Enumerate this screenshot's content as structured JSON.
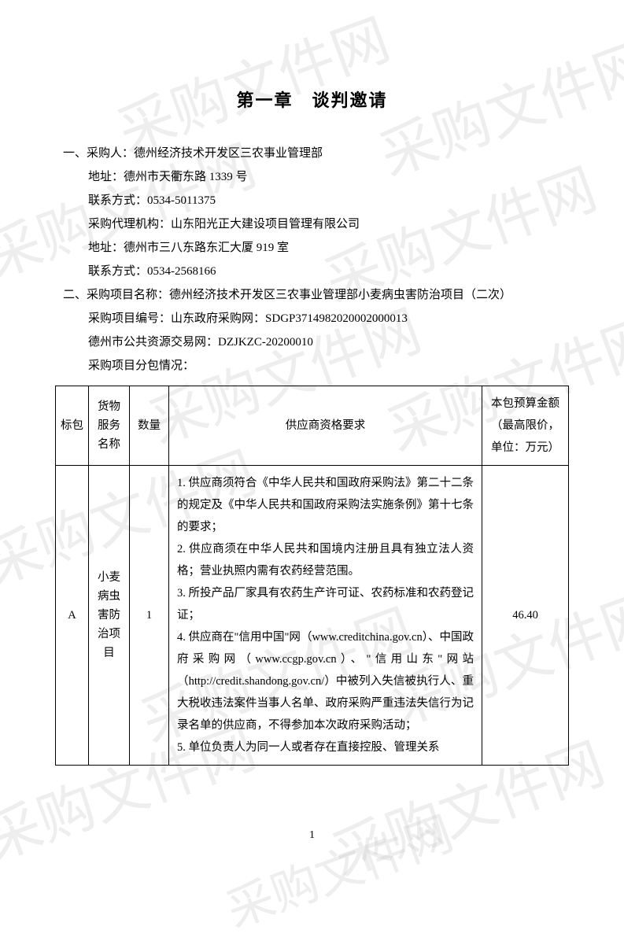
{
  "watermark_text": "采购文件网",
  "chapter_title": "第一章　谈判邀请",
  "section1": {
    "prefix": "一、",
    "buyer_label": "采购人：",
    "buyer": "德州经济技术开发区三农事业管理部",
    "address_label": "地址：",
    "address": "德州市天衢东路 1339 号",
    "contact_label": "联系方式：",
    "contact": "0534-5011375",
    "agency_label": "采购代理机构：",
    "agency": "山东阳光正大建设项目管理有限公司",
    "agency_address_label": "地址：",
    "agency_address": "德州市三八东路东汇大厦 919 室",
    "agency_contact_label": "联系方式：",
    "agency_contact": "0534-2568166"
  },
  "section2": {
    "prefix": "二、",
    "project_name_label": "采购项目名称：",
    "project_name": "德州经济技术开发区三农事业管理部小麦病虫害防治项目（二次）",
    "project_code_label": "采购项目编号：",
    "project_code_source": "山东政府采购网：",
    "project_code": "SDGP3714982020002000013",
    "resource_site_label": "德州市公共资源交易网：",
    "resource_code": "DZJKZC-20200010",
    "package_label": "采购项目分包情况："
  },
  "table": {
    "headers": {
      "bid": "标包",
      "goods": "货物服务名称",
      "qty": "数量",
      "requirements": "供应商资格要求",
      "budget": "本包预算金额（最高限价，单位：万元）"
    },
    "row": {
      "bid": "A",
      "goods": "小麦病虫害防治项目",
      "qty": "1",
      "requirements": "1. 供应商须符合《中华人民共和国政府采购法》第二十二条的规定及《中华人民共和国政府采购法实施条例》第十七条的要求；\n2. 供应商须在中华人民共和国境内注册且具有独立法人资格；营业执照内需有农药经营范围。\n3. 所投产品厂家具有农药生产许可证、农药标准和农药登记证；\n4. 供应商在\"信用中国\"网（www.creditchina.gov.cn）、中国政府采购网（www.ccgp.gov.cn）、\"信用山东\"网站（http://credit.shandong.gov.cn/）中被列入失信被执行人、重大税收违法案件当事人名单、政府采购严重违法失信行为记录名单的供应商，不得参加本次政府采购活动；\n5. 单位负责人为同一人或者存在直接控股、管理关系",
      "budget": "46.40"
    }
  },
  "page_number": "1",
  "colors": {
    "text": "#000000",
    "watermark": "rgba(200,200,200,0.3)",
    "background": "#ffffff",
    "border": "#000000"
  }
}
